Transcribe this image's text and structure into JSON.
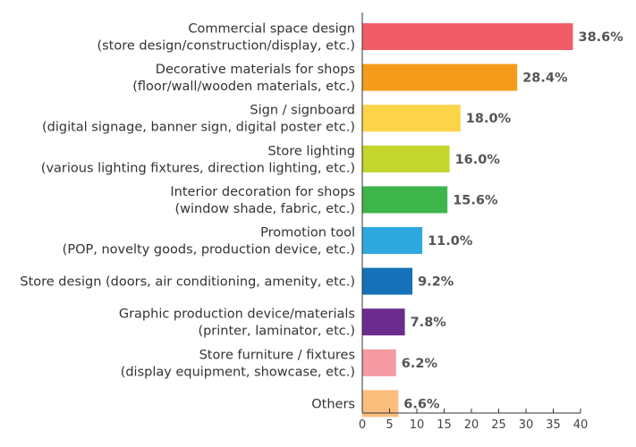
{
  "chart_data": {
    "type": "bar",
    "orientation": "horizontal",
    "title": "",
    "xlabel": "",
    "ylabel": "",
    "xlim": [
      0,
      40
    ],
    "x_ticks": [
      "0",
      "5",
      "10",
      "15",
      "20",
      "25",
      "30",
      "35",
      "40"
    ],
    "grid": false,
    "legend": "none",
    "categories": [
      {
        "lines": [
          "Commercial space design",
          "(store design/construction/display, etc.)"
        ],
        "value": 38.6,
        "value_label": "38.6%",
        "color": "#F05C66"
      },
      {
        "lines": [
          "Decorative materials for shops",
          "(floor/wall/wooden materials, etc.)"
        ],
        "value": 28.4,
        "value_label": "28.4%",
        "color": "#F59C1C"
      },
      {
        "lines": [
          "Sign / signboard",
          "(digital signage, banner sign, digital poster etc.)"
        ],
        "value": 18.0,
        "value_label": "18.0%",
        "color": "#FCD44A"
      },
      {
        "lines": [
          "Store lighting",
          "(various lighting fixtures, direction lighting, etc.)"
        ],
        "value": 16.0,
        "value_label": "16.0%",
        "color": "#C2D62E"
      },
      {
        "lines": [
          "Interior decoration for shops",
          "(window shade, fabric, etc.)"
        ],
        "value": 15.6,
        "value_label": "15.6%",
        "color": "#3DB54A"
      },
      {
        "lines": [
          "Promotion tool",
          "(POP, novelty goods, production device, etc.)"
        ],
        "value": 11.0,
        "value_label": "11.0%",
        "color": "#2EA8DF"
      },
      {
        "lines": [
          "Store design (doors, air conditioning, amenity, etc.)"
        ],
        "value": 9.2,
        "value_label": "9.2%",
        "color": "#1572B8"
      },
      {
        "lines": [
          "Graphic production device/materials",
          "(printer, laminator, etc.)"
        ],
        "value": 7.8,
        "value_label": "7.8%",
        "color": "#6A2D8E"
      },
      {
        "lines": [
          "Store furniture / fixtures",
          "(display equipment, showcase, etc.)"
        ],
        "value": 6.2,
        "value_label": "6.2%",
        "color": "#F59AA3"
      },
      {
        "lines": [
          "Others"
        ],
        "value": 6.6,
        "value_label": "6.6%",
        "color": "#FBBE7D"
      }
    ]
  }
}
